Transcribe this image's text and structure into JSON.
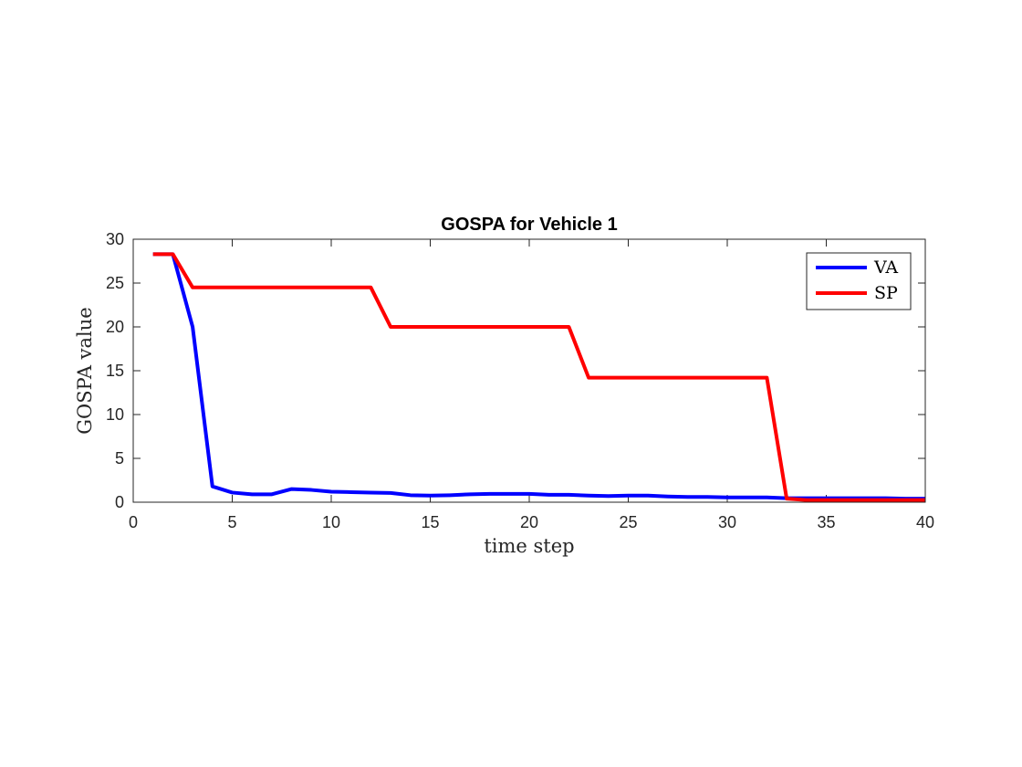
{
  "chart_data": {
    "type": "line",
    "title": "GOSPA for Vehicle 1",
    "xlabel": "time step",
    "ylabel": "GOSPA value",
    "xlim": [
      0,
      40
    ],
    "ylim": [
      0,
      30
    ],
    "xticks": [
      "0",
      "5",
      "10",
      "15",
      "20",
      "25",
      "30",
      "35",
      "40"
    ],
    "yticks": [
      "0",
      "5",
      "10",
      "15",
      "20",
      "25",
      "30"
    ],
    "grid": false,
    "legend_position": "top-right",
    "series": [
      {
        "name": "VA",
        "color": "#0000ff",
        "x": [
          1,
          2,
          3,
          4,
          5,
          6,
          7,
          8,
          9,
          10,
          11,
          12,
          13,
          14,
          15,
          16,
          17,
          18,
          19,
          20,
          21,
          22,
          23,
          24,
          25,
          26,
          27,
          28,
          29,
          30,
          31,
          32,
          33,
          34,
          35,
          36,
          37,
          38,
          39,
          40
        ],
        "y": [
          28.3,
          28.3,
          20.0,
          1.8,
          1.1,
          0.9,
          0.9,
          1.5,
          1.4,
          1.2,
          1.15,
          1.1,
          1.05,
          0.8,
          0.75,
          0.8,
          0.9,
          0.95,
          0.95,
          0.95,
          0.85,
          0.85,
          0.75,
          0.7,
          0.75,
          0.75,
          0.65,
          0.6,
          0.6,
          0.55,
          0.55,
          0.55,
          0.45,
          0.45,
          0.45,
          0.45,
          0.45,
          0.45,
          0.4,
          0.4
        ]
      },
      {
        "name": "SP",
        "color": "#ff0000",
        "x": [
          1,
          2,
          3,
          4,
          5,
          6,
          7,
          8,
          9,
          10,
          11,
          12,
          13,
          14,
          15,
          16,
          17,
          18,
          19,
          20,
          21,
          22,
          23,
          24,
          25,
          26,
          27,
          28,
          29,
          30,
          31,
          32,
          33,
          34,
          35,
          36,
          37,
          38,
          39,
          40
        ],
        "y": [
          28.3,
          28.3,
          24.5,
          24.5,
          24.5,
          24.5,
          24.5,
          24.5,
          24.5,
          24.5,
          24.5,
          24.5,
          20.0,
          20.0,
          20.0,
          20.0,
          20.0,
          20.0,
          20.0,
          20.0,
          20.0,
          20.0,
          14.2,
          14.2,
          14.2,
          14.2,
          14.2,
          14.2,
          14.2,
          14.2,
          14.2,
          14.2,
          0.4,
          0.25,
          0.25,
          0.25,
          0.25,
          0.25,
          0.25,
          0.25
        ]
      }
    ]
  }
}
